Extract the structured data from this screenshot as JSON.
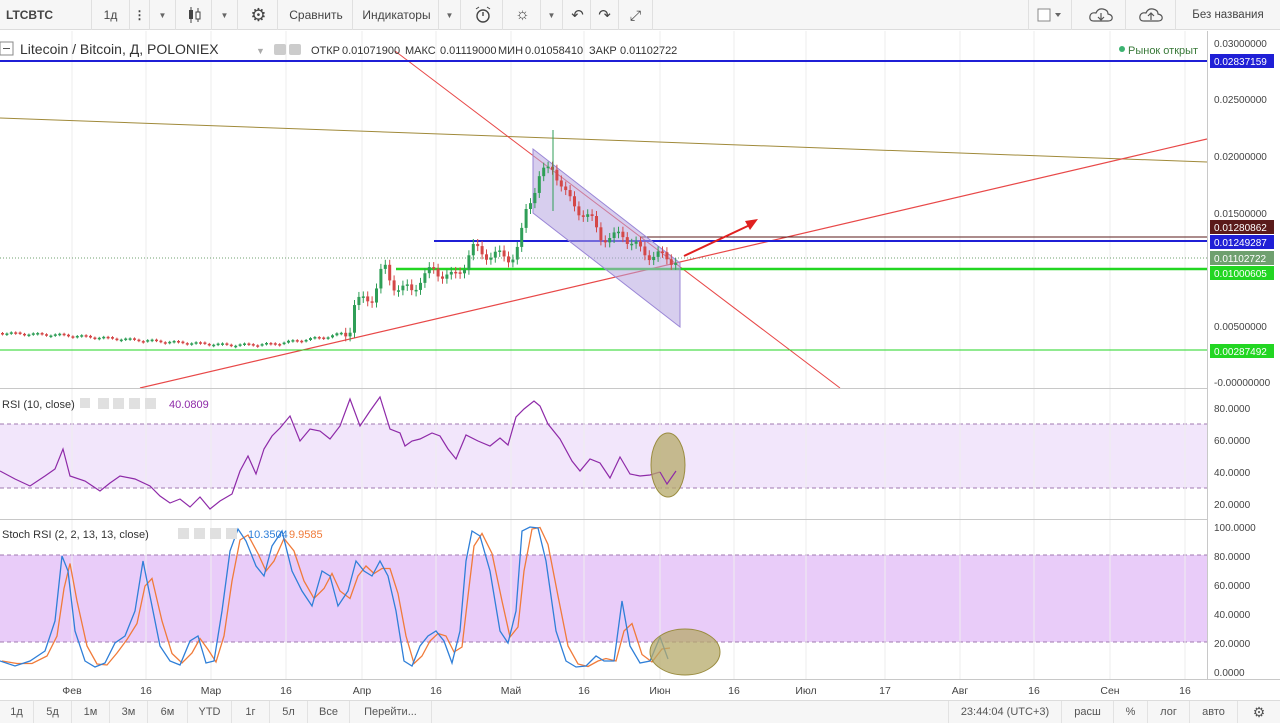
{
  "toolbar": {
    "symbol": "LTCBTC",
    "interval": "1д",
    "compare": "Сравнить",
    "indicators": "Индикаторы",
    "layout_name": "Без названия",
    "icons": [
      "chevron-down-icon",
      "candles-icon",
      "gear-icon",
      "alert-icon",
      "bulb-icon",
      "undo-icon",
      "redo-icon",
      "fullscreen-icon",
      "square-icon",
      "cloud-load-icon",
      "cloud-save-icon"
    ]
  },
  "legend": {
    "title": "Litecoin / Bitcoin, Д, POLONIEX",
    "open_label": "ОТКР",
    "open": "0.01071900",
    "high_label": "МАКС",
    "high": "0.01119000",
    "low_label": "МИН",
    "low": "0.01058410",
    "close_label": "ЗАКР",
    "close": "0.01102722",
    "market_status": "Рынок открыт"
  },
  "price_axis": {
    "ticks": [
      "0.03000000",
      "0.02500000",
      "0.02000000",
      "0.01500000",
      "0.00500000",
      "-0.00000000"
    ]
  },
  "price_badges": [
    {
      "text": "0.02837159",
      "color": "#1f1fd6"
    },
    {
      "text": "0.01280862",
      "color": "#5a1a1a"
    },
    {
      "text": "0.01249287",
      "color": "#1f1fd6"
    },
    {
      "text": "0.01102722",
      "color": "#6fa06f"
    },
    {
      "text": "0.01000605",
      "color": "#22d622"
    },
    {
      "text": "0.00287492",
      "color": "#22d622"
    }
  ],
  "rsi": {
    "title": "RSI (10, close)",
    "value": "40.0809",
    "ticks": [
      "80.0000",
      "60.0000",
      "40.0000",
      "20.0000"
    ],
    "color": "#8e2aa8",
    "band_color": "#e9d4f5"
  },
  "stoch": {
    "title": "Stoch RSI (2, 2, 13, 13, close)",
    "k": "10.3504",
    "d": "9.9585",
    "ticks": [
      "100.0000",
      "80.0000",
      "60.0000",
      "40.0000",
      "20.0000",
      "0.0000"
    ],
    "k_color": "#2f7fd8",
    "d_color": "#f07b3a"
  },
  "time_axis": {
    "labels": [
      "Фев",
      "16",
      "Мар",
      "16",
      "Апр",
      "16",
      "Май",
      "16",
      "Июн",
      "16",
      "Июл",
      "17",
      "Авг",
      "16",
      "Сен",
      "16"
    ]
  },
  "bottom": {
    "ranges": [
      "1д",
      "5д",
      "1м",
      "3м",
      "6м",
      "YTD",
      "1г",
      "5л",
      "Все",
      "Перейти..."
    ],
    "time": "23:44:04 (UTC+3)",
    "session": "расш",
    "percent": "%",
    "log": "лог",
    "auto": "авто"
  }
}
